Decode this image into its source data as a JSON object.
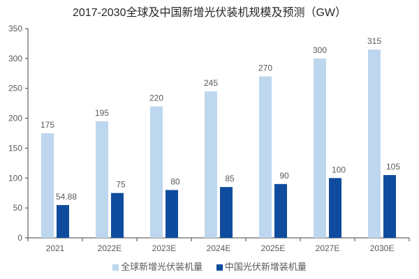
{
  "chart_data": {
    "type": "bar",
    "title": "2017-2030全球及中国新增光伏装机规模及预测（GW）",
    "xlabel": "",
    "ylabel": "",
    "ylim": [
      0,
      350
    ],
    "yticks": [
      0,
      50,
      100,
      150,
      200,
      250,
      300,
      350
    ],
    "grid": false,
    "legend_position": "bottom",
    "categories": [
      "2021",
      "2022E",
      "2023E",
      "2024E",
      "2025E",
      "2027E",
      "2030E"
    ],
    "series": [
      {
        "name": "全球新增光伏装机量",
        "color": "#BDD7EE",
        "values": [
          175,
          195,
          220,
          245,
          270,
          300,
          315
        ],
        "labels": [
          "175",
          "195",
          "220",
          "245",
          "270",
          "300",
          "315"
        ]
      },
      {
        "name": "中国光伏新增装机量",
        "color": "#0F4C9E",
        "values": [
          54.88,
          75,
          80,
          85,
          90,
          100,
          105
        ],
        "labels": [
          "54.88",
          "75",
          "80",
          "85",
          "90",
          "100",
          "105"
        ]
      }
    ]
  }
}
